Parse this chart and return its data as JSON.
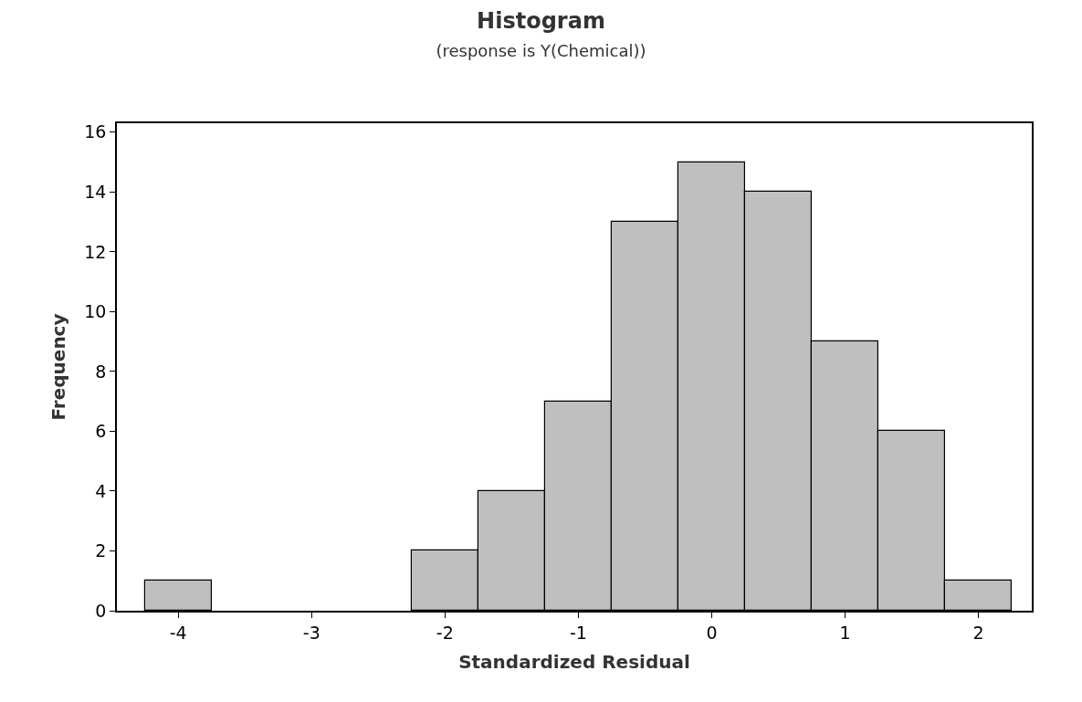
{
  "chart_data": {
    "type": "histogram",
    "title": "Histogram",
    "subtitle": "(response is Y(Chemical))",
    "xlabel": "Standardized Residual",
    "ylabel": "Frequency",
    "bins": [
      -4.25,
      -3.75,
      -3.25,
      -2.75,
      -2.25,
      -1.75,
      -1.25,
      -0.75,
      -0.25,
      0.25,
      0.75,
      1.25,
      1.75,
      2.25
    ],
    "values": [
      1,
      0,
      0,
      0,
      2,
      4,
      7,
      13,
      15,
      14,
      9,
      6,
      1
    ],
    "color": "#bfbfbf",
    "xlim": [
      -4.46,
      2.4
    ],
    "xticks": [
      -4,
      -3,
      -2,
      -1,
      0,
      1,
      2
    ],
    "ylim": [
      0,
      16.3
    ],
    "yticks": [
      0,
      2,
      4,
      6,
      8,
      10,
      12,
      14,
      16
    ]
  }
}
